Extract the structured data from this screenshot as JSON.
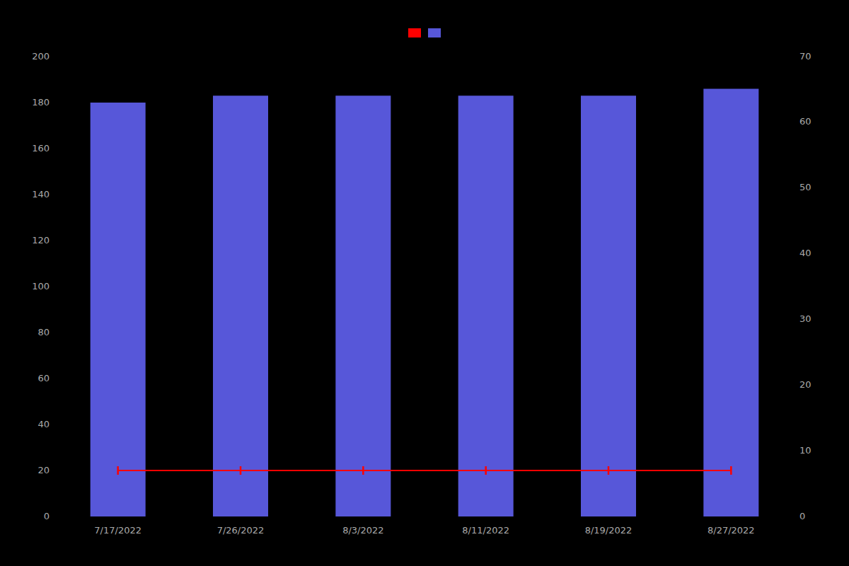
{
  "chart_data": {
    "type": "bar",
    "categories": [
      "7/17/2022",
      "7/26/2022",
      "8/3/2022",
      "8/11/2022",
      "8/19/2022",
      "8/27/2022"
    ],
    "series": [
      {
        "type": "bar",
        "color": "#6666ff",
        "values": [
          180,
          183,
          183,
          183,
          183,
          186
        ]
      },
      {
        "type": "line",
        "color": "#ff0000",
        "marker": "vline",
        "values": [
          20,
          20,
          20,
          20,
          20,
          20
        ]
      }
    ],
    "ylim": [
      0,
      200
    ],
    "yticks": [
      0,
      20,
      40,
      60,
      80,
      100,
      120,
      140,
      160,
      180,
      200
    ],
    "y2lim": [
      0,
      70
    ],
    "y2ticks": [
      0,
      10,
      20,
      30,
      40,
      50,
      60,
      70
    ],
    "grid": false,
    "legend": "top"
  }
}
